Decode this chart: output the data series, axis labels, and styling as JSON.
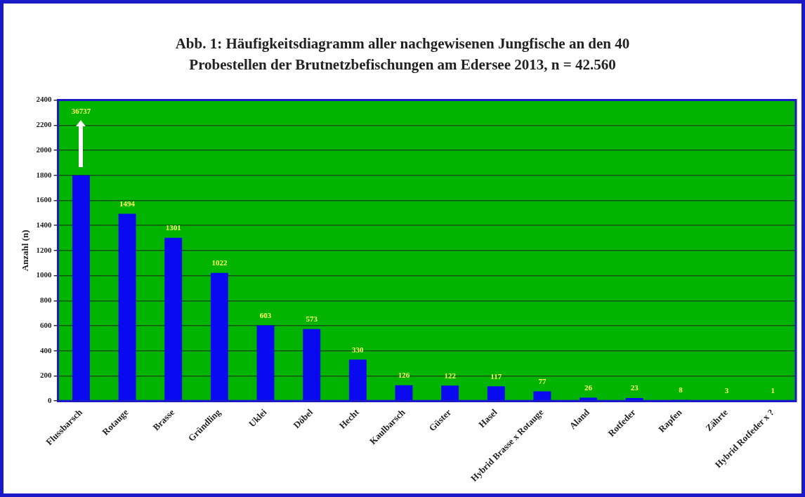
{
  "chart_data": {
    "type": "bar",
    "title": "Abb. 1: Häufigkeitsdiagramm aller nachgewisenen Jungfische an den 40\nProbestellen der  Brutnetzbefischungen am Edersee 2013, n = 42.560",
    "ylabel": "Anzahl (n)",
    "categories": [
      "Flussbarsch",
      "Rotauge",
      "Brasse",
      "Gründling",
      "Uklei",
      "Döbel",
      "Hecht",
      "Kaulbarsch",
      "Güster",
      "Hasel",
      "Hybrid Brasse x Rotauge",
      "Aland",
      "Rotfeder",
      "Rapfen",
      "Zährte",
      "Hybrid Rotfeder x ?"
    ],
    "values": [
      1800,
      1494,
      1301,
      1022,
      603,
      573,
      330,
      126,
      122,
      117,
      77,
      26,
      23,
      8,
      3,
      1
    ],
    "value_labels": [
      null,
      "1494",
      "1301",
      "1022",
      "603",
      "573",
      "330",
      "126",
      "122",
      "117",
      "77",
      "26",
      "23",
      "8",
      "3",
      "1"
    ],
    "color": "#0a0af0",
    "ylim": [
      0,
      2400
    ],
    "yticks": [
      0,
      200,
      400,
      600,
      800,
      1000,
      1200,
      1400,
      1600,
      1800,
      2000,
      2200,
      2400
    ],
    "grid": "y",
    "annotations": [
      "36737"
    ]
  }
}
